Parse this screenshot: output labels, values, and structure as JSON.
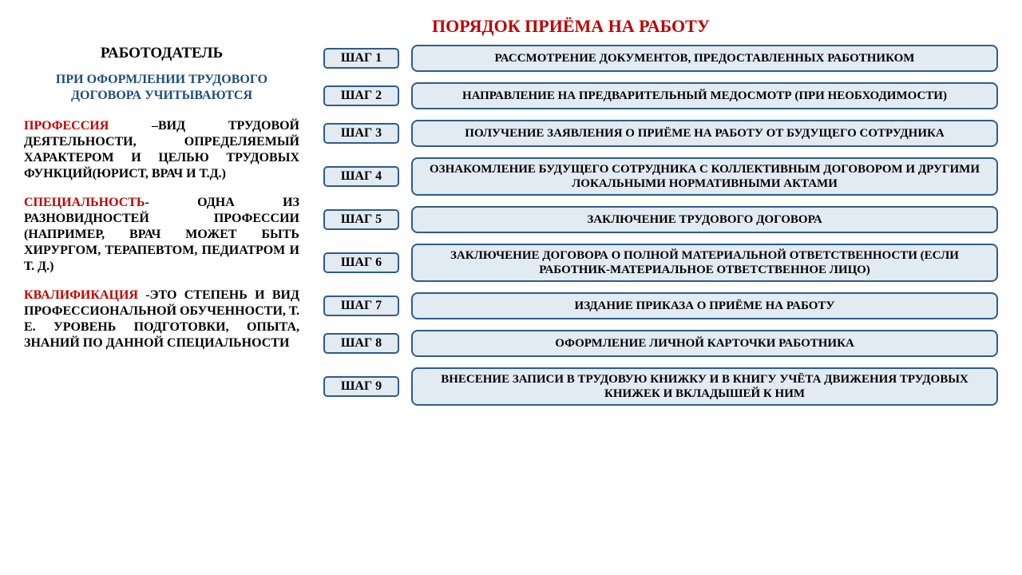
{
  "colors": {
    "title": "#c00000",
    "heading_blue": "#1f4e79",
    "term_red": "#c00000",
    "box_border": "#2e5c8a",
    "box_fill": "#e2eaf2",
    "body_text": "#000000"
  },
  "title": "ПОРЯДОК ПРИЁМА НА РАБОТУ",
  "left": {
    "employer": "РАБОТОДАТЕЛЬ",
    "blue_heading": "ПРИ ОФОРМЛЕНИИ ТРУДОВОГО ДОГОВОРА УЧИТЫВАЮТСЯ",
    "defs": [
      {
        "term": "ПРОФЕССИЯ",
        "rest": " –ВИД ТРУДОВОЙ ДЕЯТЕЛЬНОСТИ, ОПРЕДЕЛЯЕМЫЙ ХАРАКТЕРОМ И ЦЕЛЬЮ ТРУДОВЫХ ФУНКЦИЙ(ЮРИСТ, ВРАЧ И Т.Д.)"
      },
      {
        "term": "СПЕЦИАЛЬНОСТЬ",
        "rest": "- ОДНА ИЗ РАЗНОВИДНОСТЕЙ ПРОФЕССИИ (НАПРИМЕР, ВРАЧ МОЖЕТ БЫТЬ ХИРУРГОМ, ТЕРАПЕВТОМ, ПЕДИАТРОМ И Т. Д.)"
      },
      {
        "term": " КВАЛИФИКАЦИЯ ",
        "rest": "-ЭТО СТЕПЕНЬ И ВИД ПРОФЕССИОНАЛЬНОЙ ОБУЧЕННОСТИ, Т. Е. УРОВЕНЬ ПОДГОТОВКИ, ОПЫТА, ЗНАНИЙ ПО ДАННОЙ СПЕЦИАЛЬНОСТИ"
      }
    ]
  },
  "steps": [
    {
      "label": "ШАГ 1",
      "text": "РАССМОТРЕНИЕ ДОКУМЕНТОВ,  ПРЕДОСТАВЛЕННЫХ РАБОТНИКОМ"
    },
    {
      "label": "ШАГ 2",
      "text": "НАПРАВЛЕНИЕ НА ПРЕДВАРИТЕЛЬНЫЙ МЕДОСМОТР (ПРИ НЕОБХОДИМОСТИ)"
    },
    {
      "label": "ШАГ 3",
      "text": "ПОЛУЧЕНИЕ ЗАЯВЛЕНИЯ О ПРИЁМЕ НА РАБОТУ ОТ БУДУЩЕГО СОТРУДНИКА"
    },
    {
      "label": "ШАГ 4",
      "text": "ОЗНАКОМЛЕНИЕ БУДУЩЕГО СОТРУДНИКА С КОЛЛЕКТИВНЫМ ДОГОВОРОМ И ДРУГИМИ ЛОКАЛЬНЫМИ НОРМАТИВНЫМИ  АКТАМИ"
    },
    {
      "label": "ШАГ 5",
      "text": "ЗАКЛЮЧЕНИЕ ТРУДОВОГО ДОГОВОРА"
    },
    {
      "label": "ШАГ 6",
      "text": "ЗАКЛЮЧЕНИЕ   ДОГОВОРА О ПОЛНОЙ МАТЕРИАЛЬНОЙ ОТВЕТСТВЕННОСТИ (ЕСЛИ РАБОТНИК-МАТЕРИАЛЬНОЕ ОТВЕТСТВЕННОЕ ЛИЦО)"
    },
    {
      "label": "ШАГ 7",
      "text": "ИЗДАНИЕ ПРИКАЗА О ПРИЁМЕ НА РАБОТУ"
    },
    {
      "label": "ШАГ 8",
      "text": "ОФОРМЛЕНИЕ ЛИЧНОЙ КАРТОЧКИ РАБОТНИКА"
    },
    {
      "label": "ШАГ 9",
      "text": "ВНЕСЕНИЕ ЗАПИСИ В ТРУДОВУЮ КНИЖКУ И В КНИГУ УЧЁТА ДВИЖЕНИЯ ТРУДОВЫХ КНИЖЕК И ВКЛАДЫШЕЙ К НИМ"
    }
  ]
}
